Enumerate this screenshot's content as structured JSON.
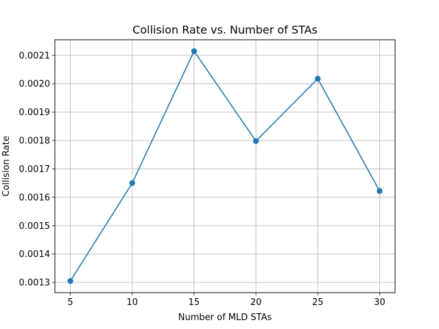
{
  "chart_data": {
    "type": "line",
    "title": "Collision Rate vs. Number of STAs",
    "xlabel": "Number of MLD STAs",
    "ylabel": "Collision Rate",
    "x": [
      5,
      10,
      15,
      20,
      25,
      30
    ],
    "series": [
      {
        "values": [
          0.001305,
          0.00165,
          0.002115,
          0.001798,
          0.002018,
          0.001622
        ]
      }
    ],
    "xticks": [
      "5",
      "10",
      "15",
      "20",
      "25",
      "30"
    ],
    "yticks": [
      "0.0013",
      "0.0014",
      "0.0015",
      "0.0016",
      "0.0017",
      "0.0018",
      "0.0019",
      "0.0020",
      "0.0021"
    ],
    "xlim": [
      3.75,
      31.25
    ],
    "ylim": [
      0.001264,
      0.002155
    ],
    "grid": true,
    "line_color": "#1f77b4",
    "marker": "circle"
  }
}
